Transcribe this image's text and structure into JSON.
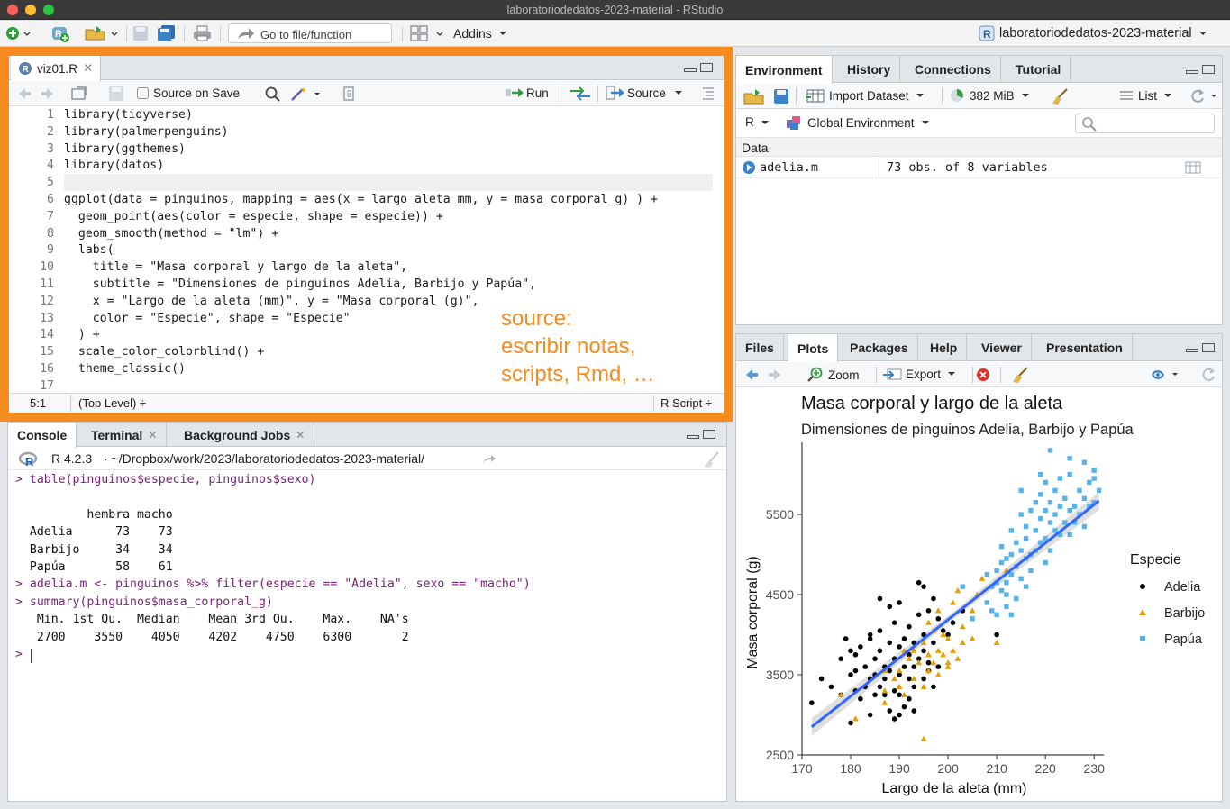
{
  "window": {
    "title": "laboratoriodedatos-2023-material - RStudio"
  },
  "main_toolbar": {
    "goto_placeholder": "Go to file/function",
    "addins_label": "Addins",
    "project_label": "laboratoriodedatos-2023-material"
  },
  "source_pane": {
    "file_tab": "viz01.R",
    "source_on_save": "Source on Save",
    "run_label": "Run",
    "source_label": "Source",
    "lines": [
      {
        "n": "1",
        "code": "library(tidyverse)"
      },
      {
        "n": "2",
        "code": "library(palmerpenguins)"
      },
      {
        "n": "3",
        "code": "library(ggthemes)"
      },
      {
        "n": "4",
        "code": "library(datos)"
      },
      {
        "n": "5",
        "code": ""
      },
      {
        "n": "6",
        "code": "ggplot(data = pinguinos, mapping = aes(x = largo_aleta_mm, y = masa_corporal_g) ) +"
      },
      {
        "n": "7",
        "code": "  geom_point(aes(color = especie, shape = especie)) +"
      },
      {
        "n": "8",
        "code": "  geom_smooth(method = \"lm\") +"
      },
      {
        "n": "9",
        "code": "  labs("
      },
      {
        "n": "10",
        "code": "    title = \"Masa corporal y largo de la aleta\","
      },
      {
        "n": "11",
        "code": "    subtitle = \"Dimensiones de pinguinos Adelia, Barbijo y Papúa\","
      },
      {
        "n": "12",
        "code": "    x = \"Largo de la aleta (mm)\", y = \"Masa corporal (g)\","
      },
      {
        "n": "13",
        "code": "    color = \"Especie\", shape = \"Especie\""
      },
      {
        "n": "14",
        "code": "  ) +"
      },
      {
        "n": "15",
        "code": "  scale_color_colorblind() +"
      },
      {
        "n": "16",
        "code": "  theme_classic()"
      },
      {
        "n": "17",
        "code": ""
      }
    ],
    "status_pos": "5:1",
    "status_scope": "(Top Level) ÷",
    "status_type": "R Script ÷",
    "annotation": [
      "source:",
      "escribir notas,",
      "scripts, Rmd, …"
    ],
    "highlight_color": "#f68b1f"
  },
  "console_pane": {
    "tabs": [
      "Console",
      "Terminal",
      "Background Jobs"
    ],
    "r_version": "R 4.2.3",
    "path": "· ~/Dropbox/work/2023/laboratoriodedatos-2023-material/",
    "lines": [
      {
        "kind": "cmd",
        "text": "> table(pinguinos$especie, pinguinos$sexo)"
      },
      {
        "kind": "out",
        "text": ""
      },
      {
        "kind": "out",
        "text": "          hembra macho"
      },
      {
        "kind": "out",
        "text": "  Adelia      73    73"
      },
      {
        "kind": "out",
        "text": "  Barbijo     34    34"
      },
      {
        "kind": "out",
        "text": "  Papúa       58    61"
      },
      {
        "kind": "cmd",
        "text": "> adelia.m <- pinguinos %>% filter(especie == \"Adelia\", sexo == \"macho\")"
      },
      {
        "kind": "cmd",
        "text": "> summary(pinguinos$masa_corporal_g)"
      },
      {
        "kind": "out",
        "text": "   Min. 1st Qu.  Median    Mean 3rd Qu.    Max.    NA's "
      },
      {
        "kind": "out",
        "text": "   2700    3550    4050    4202    4750    6300       2 "
      },
      {
        "kind": "cmd",
        "text": "> "
      }
    ]
  },
  "environment_pane": {
    "tabs": [
      "Environment",
      "History",
      "Connections",
      "Tutorial"
    ],
    "import_label": "Import Dataset",
    "memory": "382 MiB",
    "list_label": "List",
    "r_label": "R",
    "env_label": "Global Environment",
    "section": "Data",
    "rows": [
      {
        "name": "adelia.m",
        "value": "73 obs. of 8 variables"
      }
    ]
  },
  "files_pane": {
    "tabs": [
      "Files",
      "Plots",
      "Packages",
      "Help",
      "Viewer",
      "Presentation"
    ],
    "zoom_label": "Zoom",
    "export_label": "Export"
  },
  "chart_data": {
    "type": "scatter",
    "title": "Masa corporal y largo de la aleta",
    "subtitle": "Dimensiones de pinguinos Adelia, Barbijo y Papúa",
    "xlabel": "Largo de la aleta (mm)",
    "ylabel": "Masa corporal (g)",
    "xlim": [
      170,
      232
    ],
    "ylim": [
      2500,
      6400
    ],
    "xticks": [
      170,
      180,
      190,
      200,
      210,
      220,
      230
    ],
    "yticks": [
      2500,
      3500,
      4500,
      5500
    ],
    "legend_title": "Especie",
    "legend_position": "right",
    "grid": false,
    "trend": {
      "x": [
        172,
        231
      ],
      "y": [
        2850,
        5670
      ]
    },
    "series": [
      {
        "name": "Adelia",
        "shape": "circle",
        "color": "#000000",
        "points": [
          [
            172,
            3150
          ],
          [
            174,
            3450
          ],
          [
            176,
            3350
          ],
          [
            178,
            3700
          ],
          [
            178,
            3250
          ],
          [
            179,
            3950
          ],
          [
            180,
            3800
          ],
          [
            180,
            3500
          ],
          [
            180,
            2900
          ],
          [
            181,
            3550
          ],
          [
            181,
            3300
          ],
          [
            182,
            3850
          ],
          [
            182,
            3200
          ],
          [
            183,
            3600
          ],
          [
            184,
            3000
          ],
          [
            184,
            3450
          ],
          [
            184,
            3950
          ],
          [
            185,
            3700
          ],
          [
            185,
            3500
          ],
          [
            186,
            3350
          ],
          [
            186,
            3800
          ],
          [
            186,
            4050
          ],
          [
            187,
            3600
          ],
          [
            187,
            3250
          ],
          [
            187,
            3450
          ],
          [
            188,
            3900
          ],
          [
            188,
            3550
          ],
          [
            189,
            3300
          ],
          [
            189,
            3700
          ],
          [
            189,
            4150
          ],
          [
            190,
            3850
          ],
          [
            190,
            3500
          ],
          [
            190,
            3250
          ],
          [
            190,
            4400
          ],
          [
            191,
            3600
          ],
          [
            191,
            3950
          ],
          [
            191,
            3100
          ],
          [
            192,
            3750
          ],
          [
            192,
            3450
          ],
          [
            192,
            4100
          ],
          [
            193,
            3600
          ],
          [
            193,
            3350
          ],
          [
            193,
            3900
          ],
          [
            194,
            3700
          ],
          [
            194,
            4250
          ],
          [
            195,
            3450
          ],
          [
            195,
            3800
          ],
          [
            195,
            4000
          ],
          [
            196,
            4300
          ],
          [
            196,
            3650
          ],
          [
            197,
            3900
          ],
          [
            197,
            3350
          ],
          [
            197,
            4450
          ],
          [
            198,
            4200
          ],
          [
            199,
            4050
          ],
          [
            200,
            4000
          ],
          [
            201,
            4150
          ],
          [
            195,
            4600
          ],
          [
            194,
            4650
          ],
          [
            188,
            4350
          ],
          [
            186,
            4450
          ],
          [
            184,
            4000
          ],
          [
            190,
            3000
          ],
          [
            198,
            3600
          ],
          [
            203,
            4300
          ],
          [
            185,
            3250
          ],
          [
            183,
            3350
          ],
          [
            181,
            3750
          ],
          [
            196,
            3550
          ],
          [
            192,
            3200
          ],
          [
            189,
            2950
          ],
          [
            188,
            3050
          ],
          [
            193,
            3050
          ],
          [
            210,
            4000
          ]
        ]
      },
      {
        "name": "Barbijo",
        "shape": "triangle",
        "color": "#e69f00",
        "points": [
          [
            178,
            3250
          ],
          [
            181,
            2950
          ],
          [
            187,
            3550
          ],
          [
            187,
            3300
          ],
          [
            189,
            3450
          ],
          [
            190,
            3550
          ],
          [
            191,
            3800
          ],
          [
            192,
            3700
          ],
          [
            193,
            3450
          ],
          [
            194,
            3650
          ],
          [
            195,
            3350
          ],
          [
            195,
            3900
          ],
          [
            196,
            3550
          ],
          [
            196,
            3750
          ],
          [
            197,
            3650
          ],
          [
            197,
            4050
          ],
          [
            198,
            3800
          ],
          [
            198,
            3500
          ],
          [
            199,
            3750
          ],
          [
            199,
            4000
          ],
          [
            200,
            3650
          ],
          [
            200,
            3950
          ],
          [
            201,
            3800
          ],
          [
            201,
            4400
          ],
          [
            202,
            3700
          ],
          [
            203,
            4100
          ],
          [
            205,
            3950
          ],
          [
            205,
            4300
          ],
          [
            206,
            4500
          ],
          [
            207,
            4700
          ],
          [
            210,
            3900
          ],
          [
            212,
            4800
          ],
          [
            198,
            4300
          ],
          [
            193,
            3800
          ],
          [
            191,
            3250
          ],
          [
            187,
            3150
          ],
          [
            190,
            3350
          ],
          [
            196,
            4150
          ],
          [
            195,
            2700
          ],
          [
            200,
            3600
          ],
          [
            202,
            4550
          ],
          [
            203,
            3900
          ]
        ]
      },
      {
        "name": "Papúa",
        "shape": "square",
        "color": "#56b4e9",
        "points": [
          [
            203,
            4600
          ],
          [
            205,
            4200
          ],
          [
            208,
            4400
          ],
          [
            208,
            4750
          ],
          [
            209,
            4300
          ],
          [
            209,
            4600
          ],
          [
            210,
            4800
          ],
          [
            210,
            4250
          ],
          [
            210,
            4650
          ],
          [
            211,
            4550
          ],
          [
            211,
            4900
          ],
          [
            211,
            5100
          ],
          [
            212,
            4650
          ],
          [
            212,
            4950
          ],
          [
            212,
            4350
          ],
          [
            213,
            5000
          ],
          [
            213,
            4750
          ],
          [
            213,
            5300
          ],
          [
            214,
            4850
          ],
          [
            214,
            5150
          ],
          [
            214,
            4450
          ],
          [
            215,
            5050
          ],
          [
            215,
            4700
          ],
          [
            215,
            5500
          ],
          [
            216,
            5350
          ],
          [
            216,
            4950
          ],
          [
            216,
            5200
          ],
          [
            217,
            5000
          ],
          [
            217,
            5550
          ],
          [
            217,
            4800
          ],
          [
            218,
            5300
          ],
          [
            218,
            5050
          ],
          [
            218,
            5650
          ],
          [
            219,
            5450
          ],
          [
            219,
            5150
          ],
          [
            219,
            5750
          ],
          [
            220,
            5200
          ],
          [
            220,
            5550
          ],
          [
            220,
            4900
          ],
          [
            220,
            5900
          ],
          [
            221,
            5400
          ],
          [
            221,
            5650
          ],
          [
            221,
            5050
          ],
          [
            222,
            5300
          ],
          [
            222,
            5800
          ],
          [
            222,
            5500
          ],
          [
            223,
            5600
          ],
          [
            223,
            5250
          ],
          [
            223,
            5950
          ],
          [
            224,
            5400
          ],
          [
            224,
            5700
          ],
          [
            225,
            5550
          ],
          [
            225,
            5250
          ],
          [
            225,
            6000
          ],
          [
            226,
            5600
          ],
          [
            226,
            5400
          ],
          [
            227,
            5800
          ],
          [
            227,
            5500
          ],
          [
            228,
            5700
          ],
          [
            228,
            5350
          ],
          [
            229,
            5900
          ],
          [
            229,
            5600
          ],
          [
            230,
            5650
          ],
          [
            230,
            5950
          ],
          [
            230,
            6050
          ],
          [
            231,
            5800
          ],
          [
            221,
            6300
          ],
          [
            219,
            6000
          ],
          [
            215,
            5800
          ],
          [
            212,
            4500
          ],
          [
            213,
            4250
          ],
          [
            216,
            4600
          ],
          [
            225,
            6200
          ],
          [
            228,
            6150
          ]
        ]
      }
    ]
  }
}
